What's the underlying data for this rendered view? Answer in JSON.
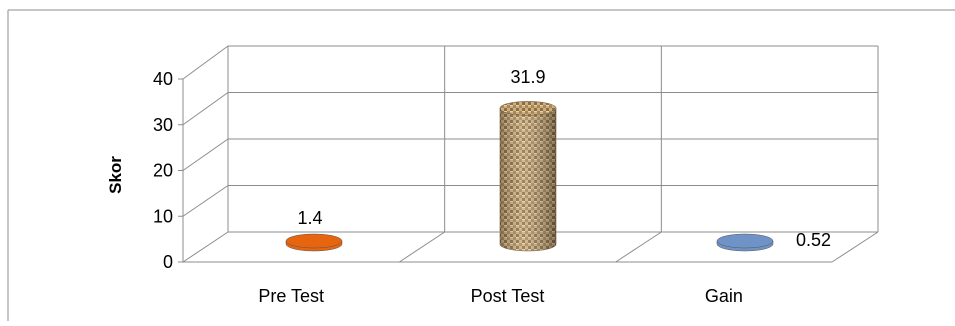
{
  "chart_data": {
    "type": "bar",
    "style": "3d-cylinder",
    "categories": [
      "Pre Test",
      "Post Test",
      "Gain"
    ],
    "values": [
      1.4,
      31.9,
      0.52
    ],
    "data_labels": [
      "1.4",
      "31.9",
      "0.52"
    ],
    "ylabel": "Skor",
    "ylim": [
      0,
      40
    ],
    "yticks": [
      "0",
      "10",
      "20",
      "30",
      "40"
    ],
    "grid": true,
    "legend": "none",
    "colors": [
      "#E8650F",
      "#C8A874",
      "#6F93C6"
    ]
  }
}
